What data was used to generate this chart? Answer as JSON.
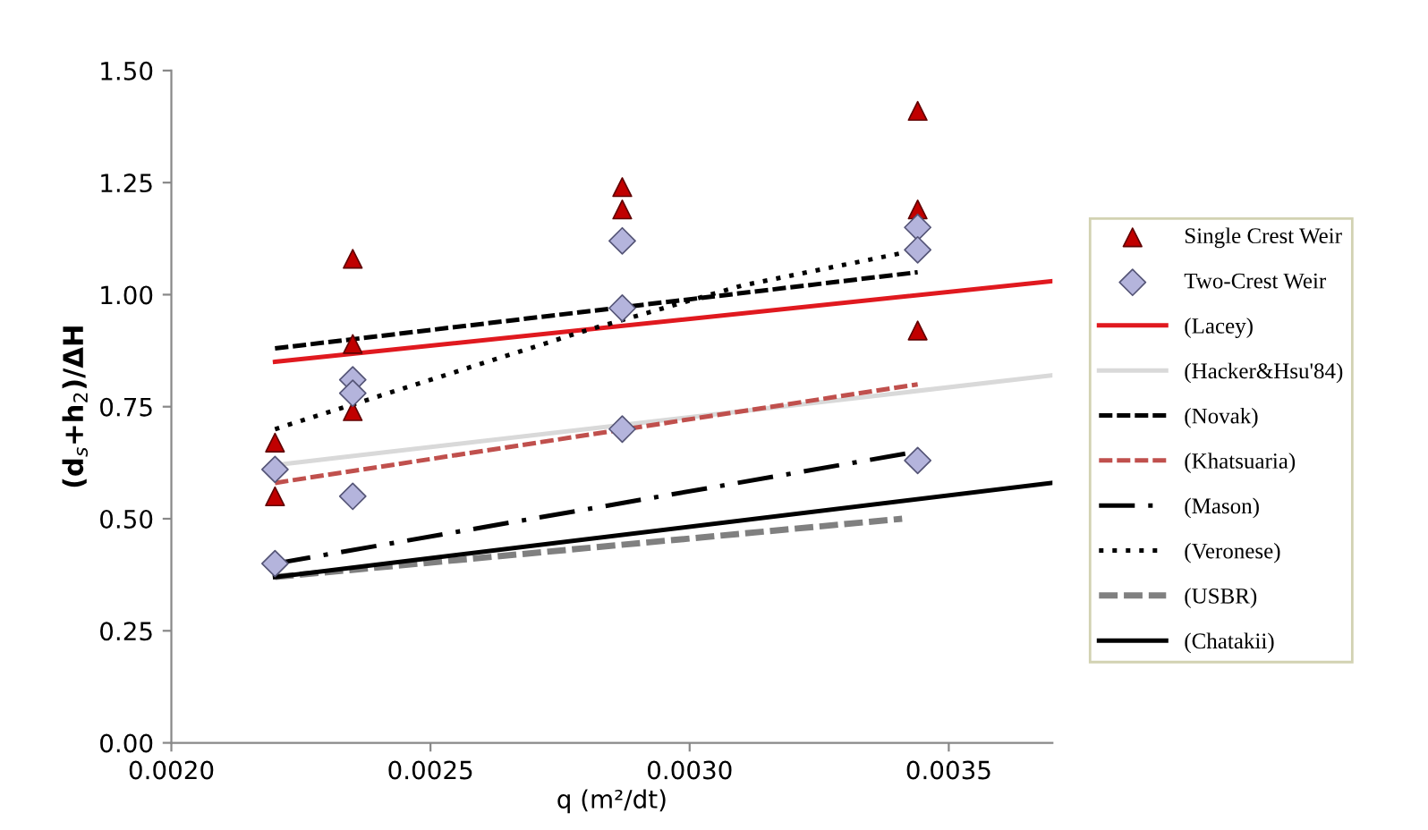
{
  "chart_data": {
    "type": "scatter",
    "xlabel": "q (m²/dt)",
    "ylabel": "(d$_{s}$+h$_{2}$)/ΔH",
    "xlim": [
      0.002,
      0.0037
    ],
    "xticks": [
      {
        "value": 0.002,
        "label": "0.0020"
      },
      {
        "value": 0.0025,
        "label": "0.0025"
      },
      {
        "value": 0.003,
        "label": "0.0030"
      },
      {
        "value": 0.0035,
        "label": "0.0035"
      }
    ],
    "ylim": [
      0,
      1.5
    ],
    "yticks": [
      {
        "value": 0,
        "label": "0.00"
      },
      {
        "value": 0.25,
        "label": "0.25"
      },
      {
        "value": 0.5,
        "label": "0.50"
      },
      {
        "value": 0.75,
        "label": "0.75"
      },
      {
        "value": 1.0,
        "label": "1.00"
      },
      {
        "value": 1.25,
        "label": "1.25"
      },
      {
        "value": 1.5,
        "label": "1.50"
      }
    ],
    "grid": false,
    "legend": "right",
    "series": [
      {
        "name": "Single Crest Weir",
        "marker": "triangle",
        "color": "#c00000",
        "x": [
          0.0022,
          0.0022,
          0.00235,
          0.00235,
          0.00235,
          0.00287,
          0.00287,
          0.00344,
          0.00344,
          0.00344
        ],
        "values": [
          0.67,
          0.55,
          1.08,
          0.89,
          0.74,
          1.24,
          1.19,
          1.41,
          1.19,
          0.92
        ]
      },
      {
        "name": "Two-Crest Weir",
        "marker": "diamond",
        "color": "#b4b4dc",
        "x": [
          0.0022,
          0.0022,
          0.00235,
          0.00235,
          0.00235,
          0.00287,
          0.00287,
          0.00287,
          0.00344,
          0.00344,
          0.00344
        ],
        "values": [
          0.61,
          0.4,
          0.81,
          0.78,
          0.55,
          1.12,
          0.97,
          0.7,
          1.15,
          1.1,
          0.63
        ]
      },
      {
        "name": "(Lacey)",
        "type": "line",
        "line_style": "solid",
        "color": "#e0191f",
        "x": [
          0.0022,
          0.0037
        ],
        "values": [
          0.85,
          1.03
        ]
      },
      {
        "name": "(Hacker&Hsu'84)",
        "type": "line",
        "line_style": "solid",
        "color": "#d9d9d9",
        "x": [
          0.0022,
          0.0037
        ],
        "values": [
          0.62,
          0.82
        ]
      },
      {
        "name": "(Novak)",
        "type": "line",
        "line_style": "dashed",
        "color": "#000000",
        "x": [
          0.0022,
          0.00344
        ],
        "values": [
          0.88,
          1.05
        ]
      },
      {
        "name": "(Khatsuaria)",
        "type": "line",
        "line_style": "dashed",
        "color": "#c0504d",
        "x": [
          0.0022,
          0.00344
        ],
        "values": [
          0.58,
          0.8
        ]
      },
      {
        "name": "(Mason)",
        "type": "line",
        "line_style": "dashdot",
        "color": "#000000",
        "x": [
          0.0022,
          0.00344
        ],
        "values": [
          0.4,
          0.65
        ]
      },
      {
        "name": "(Veronese)",
        "type": "line",
        "line_style": "dotted",
        "color": "#000000",
        "x": [
          0.0022,
          0.0025,
          0.0028,
          0.0031,
          0.00344
        ],
        "values": [
          0.7,
          0.81,
          0.92,
          1.02,
          1.1
        ]
      },
      {
        "name": "(USBR)",
        "type": "line",
        "line_style": "dashed",
        "color": "#808080",
        "x": [
          0.0022,
          0.00341
        ],
        "values": [
          0.37,
          0.5
        ]
      },
      {
        "name": "(Chatakii)",
        "type": "line",
        "line_style": "solid",
        "color": "#000000",
        "x": [
          0.0022,
          0.0037
        ],
        "values": [
          0.37,
          0.58
        ]
      }
    ]
  }
}
